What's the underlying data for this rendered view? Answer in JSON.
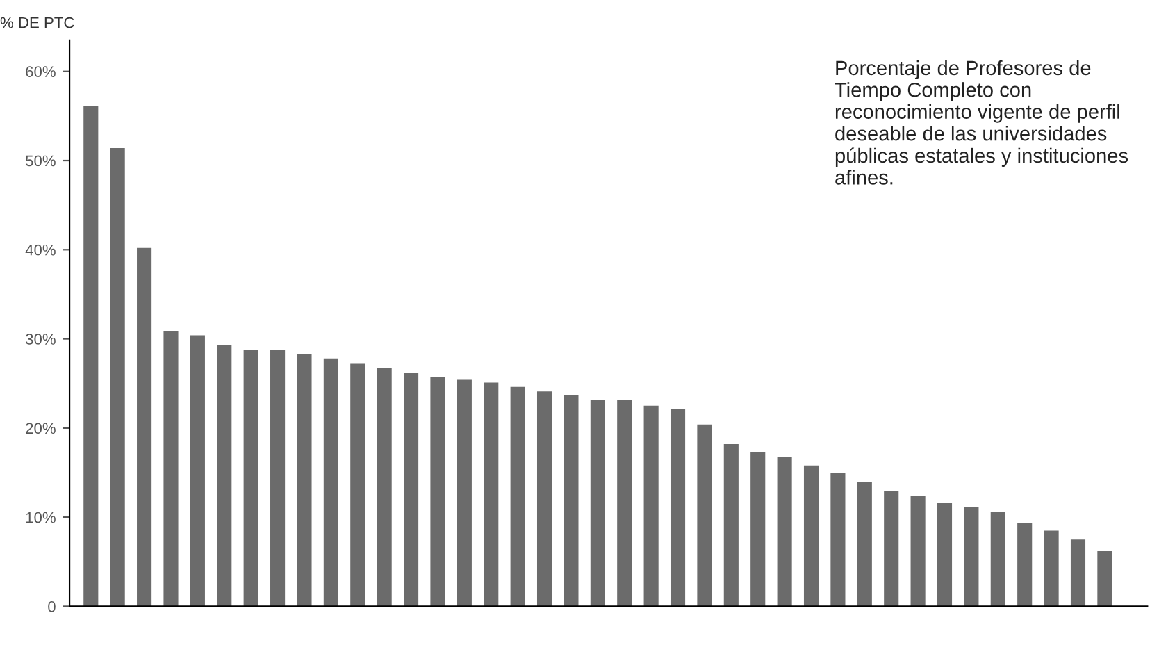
{
  "chart_data": {
    "type": "bar",
    "ylabel": "% DE PTC",
    "annotations": [
      "Porcentaje de Profesores de Tiempo Completo con reconocimiento vigente de perfil deseable de las universidades públicas estatales y instituciones afines."
    ],
    "categories": [
      null,
      null,
      null,
      null,
      null,
      null,
      null,
      null,
      null,
      null,
      null,
      null,
      null,
      null,
      null,
      null,
      null,
      null,
      null,
      null,
      null,
      null,
      null,
      null,
      null,
      null,
      null,
      null,
      null,
      null,
      null,
      null,
      null,
      null,
      null,
      null,
      null,
      null,
      null,
      null
    ],
    "values": [
      56.1,
      51.4,
      40.2,
      30.9,
      30.4,
      29.3,
      28.8,
      28.8,
      28.3,
      27.8,
      27.2,
      26.7,
      26.2,
      25.7,
      25.4,
      25.1,
      24.6,
      24.1,
      23.7,
      23.1,
      23.1,
      22.5,
      22.1,
      20.4,
      18.2,
      17.3,
      16.8,
      15.8,
      15.0,
      13.9,
      12.9,
      12.4,
      11.6,
      11.1,
      10.6,
      9.3,
      8.5,
      7.5,
      6.2,
      null
    ],
    "color": "#6b6b6b",
    "ylim": [
      0,
      63.5
    ],
    "yticks": [
      {
        "value": 0,
        "label": "0"
      },
      {
        "value": 10,
        "label": "10%"
      },
      {
        "value": 20,
        "label": "20%"
      },
      {
        "value": 30,
        "label": "30%"
      },
      {
        "value": 40,
        "label": "40%"
      },
      {
        "value": 50,
        "label": "50%"
      },
      {
        "value": 60,
        "label": "60%"
      }
    ],
    "grid": false
  }
}
